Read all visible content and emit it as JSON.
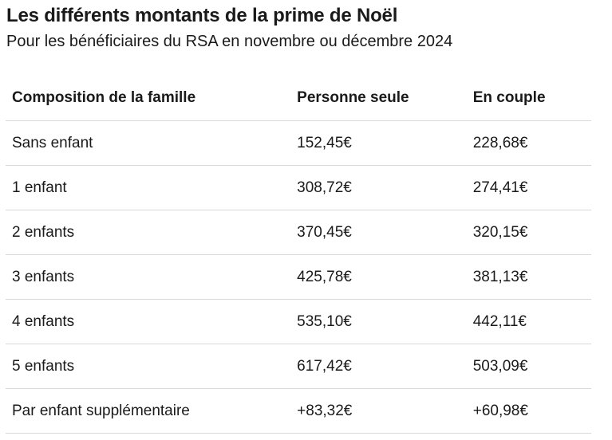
{
  "title": "Les différents montants de la prime de Noël",
  "subtitle": "Pour les bénéficiaires du RSA en novembre ou décembre 2024",
  "table": {
    "headers": [
      "Composition de la famille",
      "Personne seule",
      "En couple"
    ],
    "rows": [
      [
        "Sans enfant",
        "152,45€",
        "228,68€"
      ],
      [
        "1 enfant",
        "308,72€",
        "274,41€"
      ],
      [
        "2 enfants",
        "370,45€",
        "320,15€"
      ],
      [
        "3 enfants",
        "425,78€",
        "381,13€"
      ],
      [
        "4 enfants",
        "535,10€",
        "442,11€"
      ],
      [
        "5 enfants",
        "617,42€",
        "503,09€"
      ],
      [
        "Par enfant supplémentaire",
        "+83,32€",
        "+60,98€"
      ]
    ]
  }
}
